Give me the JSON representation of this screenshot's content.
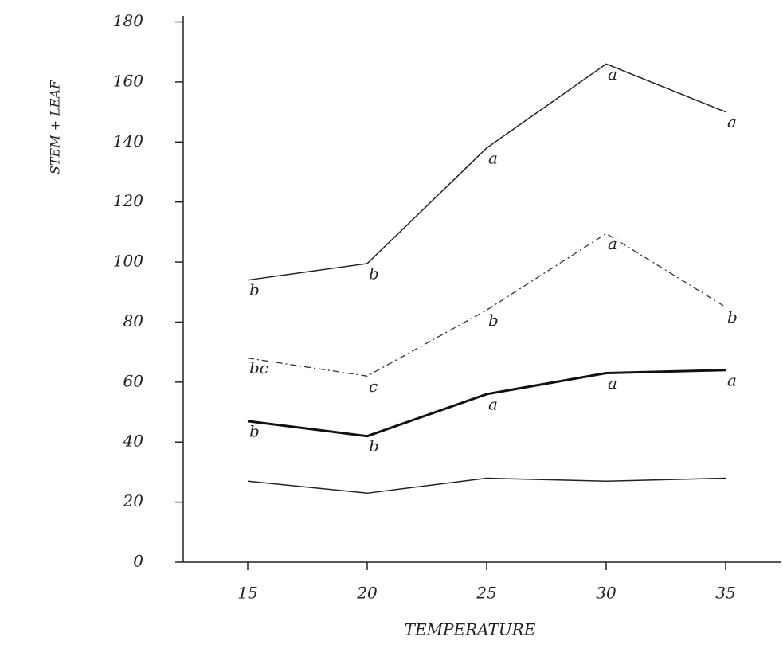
{
  "chart_data": {
    "type": "line",
    "x_label": "TEMPERATURE",
    "y_label": "STEM + LEAF",
    "x": [
      15,
      20,
      25,
      30,
      35
    ],
    "xlim": [
      12.3,
      37.3
    ],
    "xticks": [
      15,
      20,
      25,
      30,
      35
    ],
    "ylim": [
      0,
      182
    ],
    "yticks": [
      0,
      20,
      40,
      60,
      80,
      100,
      120,
      140,
      160,
      180
    ],
    "grid": false,
    "series": [
      {
        "color": "#222222",
        "width": 1.5,
        "dash": "none",
        "values": [
          94,
          99.5,
          138,
          166,
          150
        ],
        "letters": [
          "b",
          "b",
          "a",
          "a",
          "a"
        ]
      },
      {
        "color": "#333333",
        "width": 1.3,
        "dash": "8 4 2 4",
        "values": [
          68,
          62,
          84,
          109.5,
          85
        ],
        "letters": [
          "bc",
          "c",
          "b",
          "a",
          "b"
        ]
      },
      {
        "color": "#111111",
        "width": 3,
        "dash": "none",
        "values": [
          47,
          42,
          56,
          63,
          64
        ],
        "letters": [
          "b",
          "b",
          "a",
          "a",
          "a"
        ]
      },
      {
        "color": "#222222",
        "width": 1.5,
        "dash": "none",
        "values": [
          27,
          23,
          28,
          27,
          28
        ]
      }
    ]
  }
}
